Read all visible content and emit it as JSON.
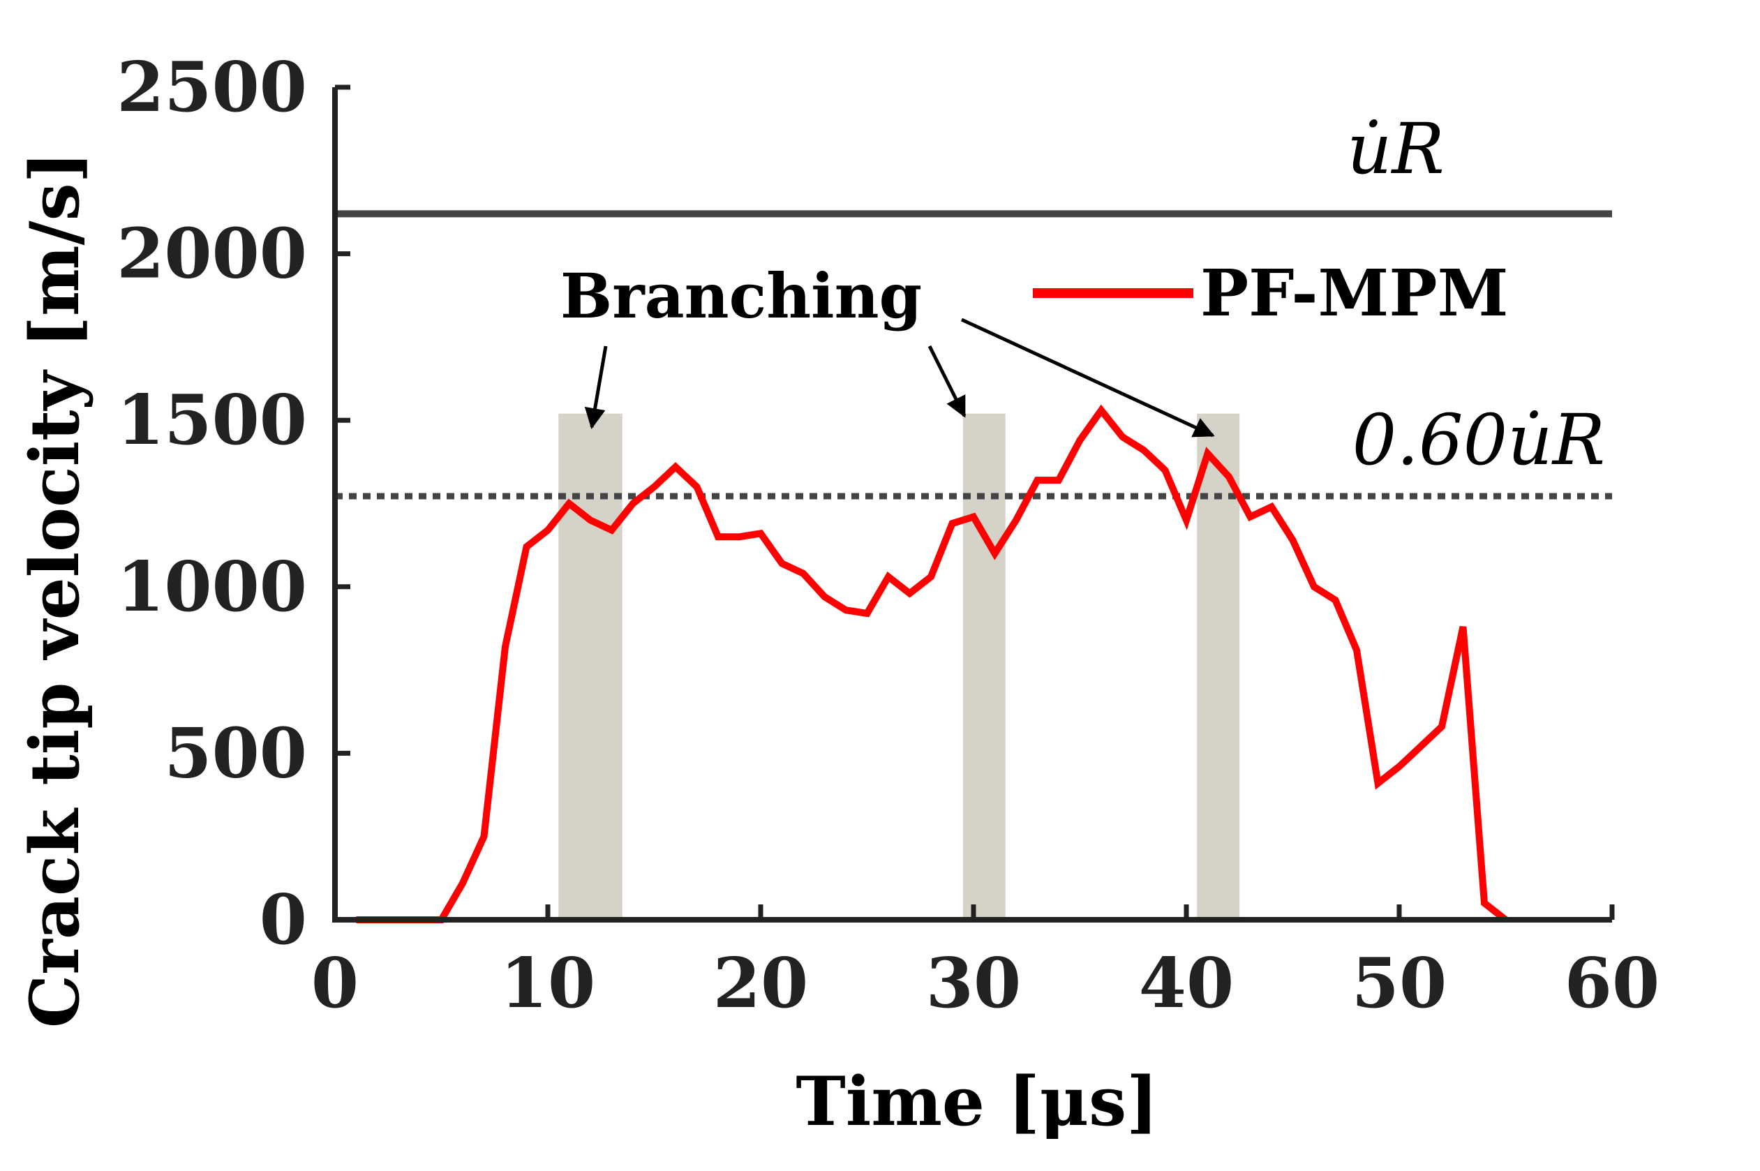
{
  "chart_data": {
    "type": "line",
    "xlabel": "Time [μs]",
    "ylabel": "Crack tip velocity [m/s]",
    "xlim": [
      0,
      60
    ],
    "ylim": [
      0,
      2500
    ],
    "xticks": [
      "0",
      "10",
      "20",
      "30",
      "40",
      "50",
      "60"
    ],
    "yticks": [
      "0",
      "500",
      "1000",
      "1500",
      "2000",
      "2500"
    ],
    "grid": false,
    "legend_position": "top-right",
    "series": [
      {
        "name": "PF-MPM",
        "color": "#ff0000",
        "x": [
          1,
          2,
          3,
          4,
          5,
          6,
          7,
          8,
          9,
          10,
          11,
          12,
          13,
          14,
          15,
          16,
          17,
          18,
          19,
          20,
          21,
          22,
          23,
          24,
          25,
          26,
          27,
          28,
          29,
          30,
          31,
          32,
          33,
          34,
          35,
          36,
          37,
          38,
          39,
          40,
          41,
          42,
          43,
          44,
          45,
          46,
          47,
          48,
          49,
          50,
          51,
          52,
          53,
          54,
          55
        ],
        "y": [
          0,
          0,
          0,
          0,
          0,
          110,
          250,
          820,
          1120,
          1170,
          1250,
          1200,
          1170,
          1250,
          1300,
          1360,
          1300,
          1150,
          1150,
          1160,
          1070,
          1040,
          970,
          930,
          920,
          1030,
          980,
          1030,
          1190,
          1210,
          1100,
          1200,
          1320,
          1320,
          1440,
          1530,
          1450,
          1410,
          1350,
          1200,
          1400,
          1330,
          1210,
          1240,
          1140,
          1000,
          960,
          810,
          410,
          460,
          520,
          580,
          880,
          50,
          0
        ]
      }
    ],
    "reference_lines": [
      {
        "name": "u̇R",
        "y": 2120,
        "style": "solid",
        "color": "#444444",
        "label": "u̇R"
      },
      {
        "name": "0.60u̇R",
        "y": 1272,
        "style": "dotted",
        "color": "#444444",
        "label": "0.60u̇R"
      }
    ],
    "shaded_regions": [
      {
        "x": [
          10.5,
          13.5
        ],
        "y_top": 1520,
        "color": "#d5d3c8"
      },
      {
        "x": [
          29.5,
          31.5
        ],
        "y_top": 1520,
        "color": "#d5d3c8"
      },
      {
        "x": [
          40.5,
          42.5
        ],
        "y_top": 1520,
        "color": "#d5d3c8"
      }
    ],
    "annotations": [
      {
        "text": "Branching"
      }
    ]
  }
}
